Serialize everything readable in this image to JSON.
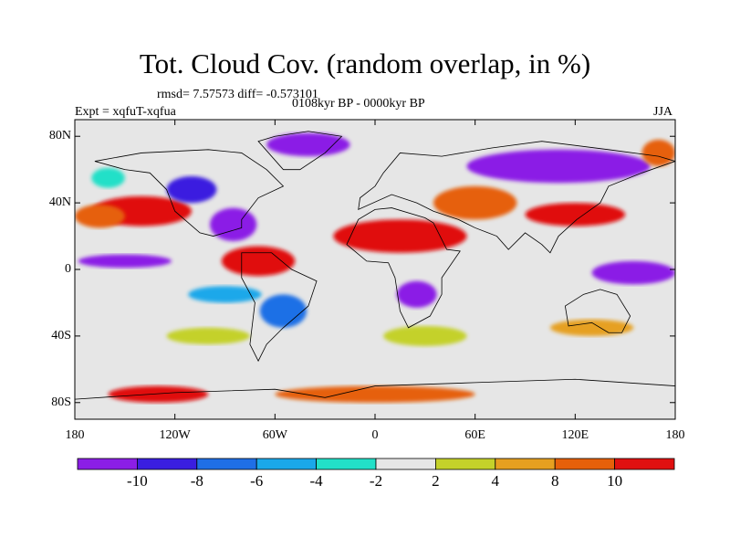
{
  "title": "Tot. Cloud Cov. (random overlap, in %)",
  "subtitle_rmsd": "rmsd= 7.57573 diff= -0.573101",
  "period": "0108kyr BP - 0000kyr BP",
  "experiment": "Expt = xqfuT-xqfua",
  "season": "JJA",
  "y_ticks": [
    "80N",
    "40N",
    "0",
    "40S",
    "80S"
  ],
  "x_ticks": [
    "180",
    "120W",
    "60W",
    "0",
    "60E",
    "120E",
    "180"
  ],
  "colorbar": {
    "labels": [
      "-10",
      "-8",
      "-6",
      "-4",
      "-2",
      "2",
      "4",
      "8",
      "10"
    ],
    "colors": [
      "#8b1ee6",
      "#3a1ee0",
      "#1f6fe6",
      "#1aa8ea",
      "#22e0c8",
      "#e6e6e6",
      "#c4d12a",
      "#e6a020",
      "#e6600a",
      "#e01010"
    ]
  },
  "map_data": {
    "blobs": [
      {
        "lon": -150,
        "lat": 5,
        "rx": 28,
        "ry": 4,
        "c": 0
      },
      {
        "lon": -140,
        "lat": 35,
        "rx": 30,
        "ry": 9,
        "c": 9
      },
      {
        "lon": -165,
        "lat": 32,
        "rx": 15,
        "ry": 7,
        "c": 8
      },
      {
        "lon": -110,
        "lat": 48,
        "rx": 15,
        "ry": 8,
        "c": 1
      },
      {
        "lon": -85,
        "lat": 27,
        "rx": 14,
        "ry": 10,
        "c": 0
      },
      {
        "lon": -70,
        "lat": 5,
        "rx": 22,
        "ry": 9,
        "c": 9
      },
      {
        "lon": -90,
        "lat": -15,
        "rx": 22,
        "ry": 5,
        "c": 3
      },
      {
        "lon": -55,
        "lat": -25,
        "rx": 14,
        "ry": 10,
        "c": 2
      },
      {
        "lon": 15,
        "lat": 20,
        "rx": 40,
        "ry": 10,
        "c": 9
      },
      {
        "lon": 60,
        "lat": 40,
        "rx": 25,
        "ry": 10,
        "c": 8
      },
      {
        "lon": 120,
        "lat": 33,
        "rx": 30,
        "ry": 7,
        "c": 9
      },
      {
        "lon": 110,
        "lat": 62,
        "rx": 55,
        "ry": 10,
        "c": 0
      },
      {
        "lon": 155,
        "lat": -2,
        "rx": 25,
        "ry": 7,
        "c": 0
      },
      {
        "lon": 25,
        "lat": -15,
        "rx": 12,
        "ry": 8,
        "c": 0
      },
      {
        "lon": -100,
        "lat": -40,
        "rx": 25,
        "ry": 5,
        "c": 6
      },
      {
        "lon": 30,
        "lat": -40,
        "rx": 25,
        "ry": 6,
        "c": 6
      },
      {
        "lon": 130,
        "lat": -35,
        "rx": 25,
        "ry": 5,
        "c": 7
      },
      {
        "lon": 0,
        "lat": -75,
        "rx": 60,
        "ry": 5,
        "c": 8
      },
      {
        "lon": -130,
        "lat": -75,
        "rx": 30,
        "ry": 5,
        "c": 9
      },
      {
        "lon": -40,
        "lat": 75,
        "rx": 25,
        "ry": 7,
        "c": 0
      },
      {
        "lon": 170,
        "lat": 70,
        "rx": 10,
        "ry": 8,
        "c": 8
      },
      {
        "lon": -160,
        "lat": 55,
        "rx": 10,
        "ry": 6,
        "c": 4
      }
    ],
    "continents": [
      {
        "name": "north-america",
        "pts": [
          [
            -168,
            65
          ],
          [
            -140,
            70
          ],
          [
            -100,
            72
          ],
          [
            -80,
            70
          ],
          [
            -65,
            60
          ],
          [
            -55,
            50
          ],
          [
            -70,
            43
          ],
          [
            -80,
            30
          ],
          [
            -80,
            25
          ],
          [
            -97,
            20
          ],
          [
            -105,
            22
          ],
          [
            -120,
            35
          ],
          [
            -125,
            48
          ],
          [
            -135,
            58
          ],
          [
            -150,
            60
          ],
          [
            -168,
            65
          ]
        ]
      },
      {
        "name": "south-america",
        "pts": [
          [
            -80,
            10
          ],
          [
            -62,
            10
          ],
          [
            -50,
            0
          ],
          [
            -35,
            -7
          ],
          [
            -40,
            -22
          ],
          [
            -55,
            -35
          ],
          [
            -65,
            -45
          ],
          [
            -70,
            -55
          ],
          [
            -75,
            -45
          ],
          [
            -72,
            -20
          ],
          [
            -80,
            -5
          ],
          [
            -80,
            10
          ]
        ]
      },
      {
        "name": "africa",
        "pts": [
          [
            -17,
            15
          ],
          [
            -10,
            30
          ],
          [
            0,
            36
          ],
          [
            10,
            37
          ],
          [
            30,
            31
          ],
          [
            35,
            28
          ],
          [
            43,
            12
          ],
          [
            51,
            11
          ],
          [
            40,
            -5
          ],
          [
            40,
            -15
          ],
          [
            33,
            -28
          ],
          [
            20,
            -35
          ],
          [
            15,
            -25
          ],
          [
            12,
            -5
          ],
          [
            8,
            4
          ],
          [
            -5,
            5
          ],
          [
            -17,
            15
          ]
        ]
      },
      {
        "name": "eurasia",
        "pts": [
          [
            -10,
            36
          ],
          [
            -9,
            43
          ],
          [
            0,
            50
          ],
          [
            5,
            58
          ],
          [
            15,
            70
          ],
          [
            40,
            68
          ],
          [
            70,
            73
          ],
          [
            100,
            77
          ],
          [
            140,
            72
          ],
          [
            170,
            68
          ],
          [
            180,
            65
          ],
          [
            160,
            58
          ],
          [
            140,
            50
          ],
          [
            135,
            40
          ],
          [
            121,
            30
          ],
          [
            110,
            20
          ],
          [
            105,
            10
          ],
          [
            100,
            15
          ],
          [
            90,
            22
          ],
          [
            80,
            12
          ],
          [
            73,
            20
          ],
          [
            60,
            25
          ],
          [
            50,
            30
          ],
          [
            35,
            35
          ],
          [
            25,
            40
          ],
          [
            10,
            45
          ],
          [
            -10,
            36
          ]
        ]
      },
      {
        "name": "australia",
        "pts": [
          [
            114,
            -22
          ],
          [
            125,
            -15
          ],
          [
            135,
            -12
          ],
          [
            145,
            -15
          ],
          [
            153,
            -28
          ],
          [
            148,
            -38
          ],
          [
            140,
            -38
          ],
          [
            130,
            -32
          ],
          [
            116,
            -34
          ],
          [
            114,
            -22
          ]
        ]
      },
      {
        "name": "greenland",
        "pts": [
          [
            -55,
            60
          ],
          [
            -45,
            60
          ],
          [
            -30,
            70
          ],
          [
            -20,
            80
          ],
          [
            -40,
            83
          ],
          [
            -60,
            80
          ],
          [
            -70,
            77
          ],
          [
            -55,
            60
          ]
        ]
      },
      {
        "name": "antarctica",
        "pts": [
          [
            -180,
            -78
          ],
          [
            -120,
            -74
          ],
          [
            -60,
            -72
          ],
          [
            -30,
            -77
          ],
          [
            0,
            -70
          ],
          [
            60,
            -68
          ],
          [
            120,
            -66
          ],
          [
            180,
            -70
          ],
          [
            180,
            -90
          ],
          [
            -180,
            -90
          ],
          [
            -180,
            -78
          ]
        ]
      }
    ]
  }
}
